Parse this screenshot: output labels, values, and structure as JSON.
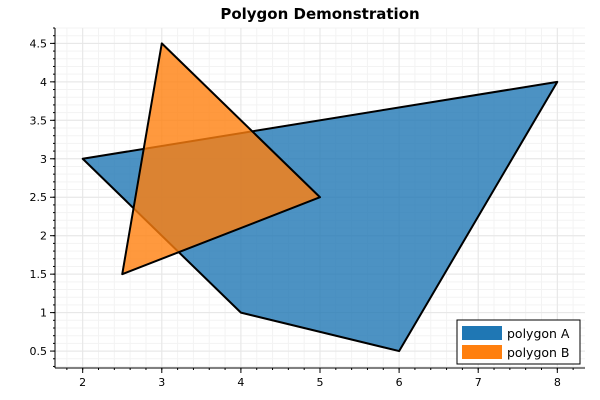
{
  "chart_data": {
    "type": "polygon",
    "title": "Polygon Demonstration",
    "xlim": [
      1.65,
      8.35
    ],
    "ylim": [
      0.28,
      4.7
    ],
    "x_ticks": [
      2,
      3,
      4,
      5,
      6,
      7,
      8
    ],
    "x_tick_labels": [
      "2",
      "3",
      "4",
      "5",
      "6",
      "7",
      "8"
    ],
    "y_ticks": [
      0.5,
      1,
      1.5,
      2,
      2.5,
      3,
      3.5,
      4,
      4.5
    ],
    "y_tick_labels": [
      "0.5",
      "1",
      "1.5",
      "2",
      "2.5",
      "3",
      "3.5",
      "4",
      "4.5"
    ],
    "grid": true,
    "legend_position": "bottom-right",
    "series": [
      {
        "name": "polygon A",
        "color": "#1f77b4",
        "opacity": 0.8,
        "points": [
          [
            2,
            3
          ],
          [
            8,
            4
          ],
          [
            6,
            0.5
          ],
          [
            4,
            1
          ]
        ]
      },
      {
        "name": "polygon B",
        "color": "#ff7f0e",
        "opacity": 0.8,
        "points": [
          [
            3,
            4.5
          ],
          [
            5,
            2.5
          ],
          [
            2.5,
            1.5
          ]
        ]
      }
    ]
  }
}
